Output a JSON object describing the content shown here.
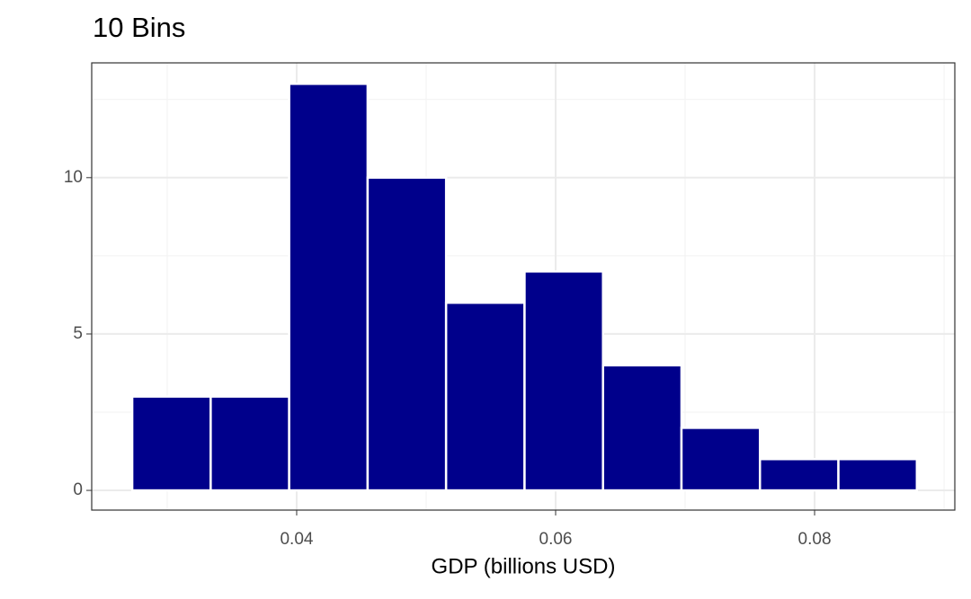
{
  "chart_data": {
    "type": "histogram",
    "title": "10 Bins",
    "x_label": "GDP (billions USD)",
    "bins": [
      0.0273,
      0.03336,
      0.03942,
      0.04548,
      0.05154,
      0.0576,
      0.06366,
      0.06972,
      0.07578,
      0.08184,
      0.0879
    ],
    "values": [
      3,
      3,
      13,
      10,
      6,
      7,
      4,
      2,
      1,
      1
    ],
    "color": "#00008b",
    "xlim": [
      0.02417,
      0.09083
    ],
    "xticks": [
      0.04,
      0.06,
      0.08
    ],
    "ylim": [
      -0.63,
      13.67
    ],
    "yticks": [
      0,
      5,
      10
    ],
    "grid": true
  }
}
